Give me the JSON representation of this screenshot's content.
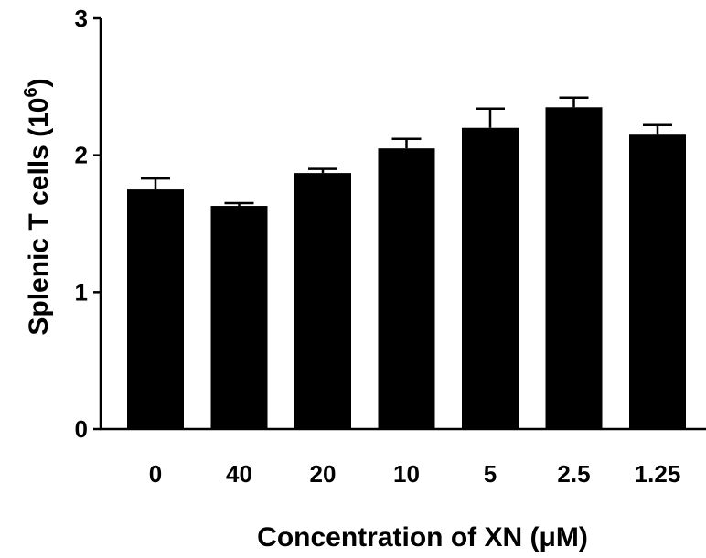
{
  "chart_data": {
    "type": "bar",
    "categories": [
      "0",
      "40",
      "20",
      "10",
      "5",
      "2.5",
      "1.25"
    ],
    "series": [
      {
        "values": [
          1.75,
          1.63,
          1.87,
          2.05,
          2.2,
          2.35,
          2.15
        ],
        "errors": [
          0.08,
          0.02,
          0.03,
          0.07,
          0.14,
          0.07,
          0.07
        ]
      }
    ],
    "xlabel": "Concentration of XN (μM)",
    "ylabel_main": "Splenic T cells (10",
    "ylabel_exp": "6",
    "ylabel_close": ")",
    "ylim": [
      0,
      3
    ],
    "yticks": [
      0,
      1,
      2,
      3
    ],
    "ytick_labels": [
      "0",
      "1",
      "2",
      "3"
    ],
    "grid": false,
    "bar_color": "#000000",
    "error_bars": "upper only"
  }
}
